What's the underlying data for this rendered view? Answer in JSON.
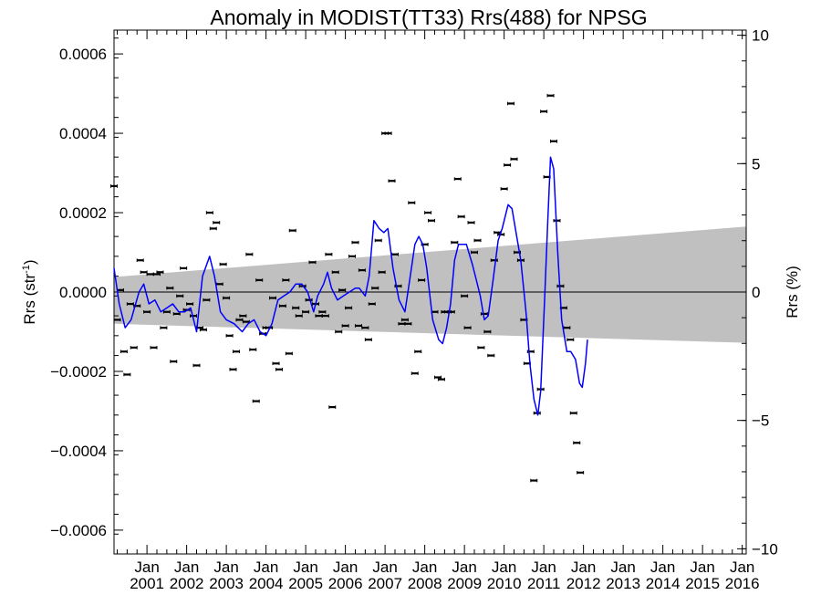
{
  "chart_data": {
    "type": "line",
    "title": "Anomaly in MODIST(TT33) Rrs(488) for NPSG",
    "ylabel": "Rrs (str",
    "ylabel_sup": "-1",
    "ylabel_close": ")",
    "y2label": "Rrs (%)",
    "xlim": [
      2000.17,
      2016.1
    ],
    "ylim": [
      -0.00066,
      0.00066
    ],
    "y2lim": [
      -10.2,
      10.2
    ],
    "yticks": [
      {
        "v": 0.0006,
        "label": "0.0006"
      },
      {
        "v": 0.0004,
        "label": "0.0004"
      },
      {
        "v": 0.0002,
        "label": "0.0002"
      },
      {
        "v": 0.0,
        "label": "0.0000"
      },
      {
        "v": -0.0002,
        "label": "−0.0002"
      },
      {
        "v": -0.0004,
        "label": "−0.0004"
      },
      {
        "v": -0.0006,
        "label": "−0.0006"
      }
    ],
    "y2ticks": [
      {
        "v": 10,
        "label": "10"
      },
      {
        "v": 5,
        "label": "5"
      },
      {
        "v": 0,
        "label": "0"
      },
      {
        "v": -5,
        "label": "−5"
      },
      {
        "v": -10,
        "label": "−10"
      }
    ],
    "xticks": [
      {
        "v": 2001,
        "line1": "Jan",
        "line2": "2001"
      },
      {
        "v": 2002,
        "line1": "Jan",
        "line2": "2002"
      },
      {
        "v": 2003,
        "line1": "Jan",
        "line2": "2003"
      },
      {
        "v": 2004,
        "line1": "Jan",
        "line2": "2004"
      },
      {
        "v": 2005,
        "line1": "Jan",
        "line2": "2005"
      },
      {
        "v": 2006,
        "line1": "Jan",
        "line2": "2006"
      },
      {
        "v": 2007,
        "line1": "Jan",
        "line2": "2007"
      },
      {
        "v": 2008,
        "line1": "Jan",
        "line2": "2008"
      },
      {
        "v": 2009,
        "line1": "Jan",
        "line2": "2009"
      },
      {
        "v": 2010,
        "line1": "Jan",
        "line2": "2010"
      },
      {
        "v": 2011,
        "line1": "Jan",
        "line2": "2011"
      },
      {
        "v": 2012,
        "line1": "Jan",
        "line2": "2012"
      },
      {
        "v": 2013,
        "line1": "Jan",
        "line2": "2013"
      },
      {
        "v": 2014,
        "line1": "Jan",
        "line2": "2014"
      },
      {
        "v": 2015,
        "line1": "Jan",
        "line2": "2015"
      },
      {
        "v": 2016,
        "line1": "Jan",
        "line2": "2016"
      }
    ],
    "band": {
      "color": "#c0c0c0",
      "upper": [
        [
          2000.17,
          3.8e-05
        ],
        [
          2016.1,
          0.000165
        ]
      ],
      "lower": [
        [
          2000.17,
          -8e-05
        ],
        [
          2016.1,
          -0.000128
        ]
      ]
    },
    "zero_line": 0,
    "series": [
      {
        "kind": "points",
        "color": "#000000",
        "values": [
          [
            2000.17,
            0.000267
          ],
          [
            2000.25,
            -7e-05
          ],
          [
            2000.33,
            5e-06
          ],
          [
            2000.42,
            -0.00015
          ],
          [
            2000.5,
            -0.000208
          ],
          [
            2000.58,
            -3e-05
          ],
          [
            2000.67,
            -0.00014
          ],
          [
            2000.75,
            -3.5e-05
          ],
          [
            2000.83,
            8e-05
          ],
          [
            2000.92,
            5e-05
          ],
          [
            2001.0,
            -5e-05
          ],
          [
            2001.08,
            4.5e-05
          ],
          [
            2001.17,
            -0.00014
          ],
          [
            2001.25,
            4.5e-05
          ],
          [
            2001.33,
            5e-05
          ],
          [
            2001.42,
            -9e-05
          ],
          [
            2001.5,
            -5e-05
          ],
          [
            2001.58,
            1e-05
          ],
          [
            2001.67,
            -0.000175
          ],
          [
            2001.75,
            -5.5e-05
          ],
          [
            2001.83,
            -1e-05
          ],
          [
            2001.92,
            6e-05
          ],
          [
            2002.0,
            -4.5e-05
          ],
          [
            2002.08,
            -3e-05
          ],
          [
            2002.17,
            -6e-05
          ],
          [
            2002.25,
            -0.000185
          ],
          [
            2002.33,
            -9e-05
          ],
          [
            2002.42,
            -9.5e-05
          ],
          [
            2002.5,
            -2e-05
          ],
          [
            2002.58,
            0.0002
          ],
          [
            2002.67,
            0.00016
          ],
          [
            2002.75,
            0.000175
          ],
          [
            2002.83,
            2e-05
          ],
          [
            2002.92,
            7e-05
          ],
          [
            2003.0,
            -1.5e-05
          ],
          [
            2003.08,
            -0.00011
          ],
          [
            2003.17,
            -0.000195
          ],
          [
            2003.25,
            -0.00015
          ],
          [
            2003.33,
            -7e-05
          ],
          [
            2003.42,
            -6e-05
          ],
          [
            2003.5,
            -7.5e-05
          ],
          [
            2003.58,
            9.5e-05
          ],
          [
            2003.67,
            -0.000145
          ],
          [
            2003.75,
            -0.000275
          ],
          [
            2003.83,
            3e-05
          ],
          [
            2003.92,
            -0.000105
          ],
          [
            2004.0,
            -9e-05
          ],
          [
            2004.08,
            -9e-05
          ],
          [
            2004.17,
            -1.5e-05
          ],
          [
            2004.25,
            -0.00018
          ],
          [
            2004.33,
            -0.000195
          ],
          [
            2004.42,
            -3.5e-05
          ],
          [
            2004.5,
            3e-05
          ],
          [
            2004.58,
            -0.000155
          ],
          [
            2004.67,
            0.000155
          ],
          [
            2004.75,
            -4e-05
          ],
          [
            2004.83,
            -6e-05
          ],
          [
            2004.92,
            1.5e-05
          ],
          [
            2005.0,
            -5e-05
          ],
          [
            2005.08,
            -2e-05
          ],
          [
            2005.17,
            7.5e-05
          ],
          [
            2005.25,
            -3e-05
          ],
          [
            2005.33,
            -6e-05
          ],
          [
            2005.42,
            -5e-05
          ],
          [
            2005.5,
            -6e-05
          ],
          [
            2005.58,
            9.5e-05
          ],
          [
            2005.67,
            -0.00029
          ],
          [
            2005.75,
            5e-05
          ],
          [
            2005.83,
            -0.0001
          ],
          [
            2005.92,
            5e-06
          ],
          [
            2006.0,
            -8.5e-05
          ],
          [
            2006.08,
            -4e-05
          ],
          [
            2006.17,
            9e-05
          ],
          [
            2006.25,
            0.000125
          ],
          [
            2006.33,
            -8.5e-05
          ],
          [
            2006.42,
            5.5e-05
          ],
          [
            2006.5,
            -9e-05
          ],
          [
            2006.58,
            -0.00012
          ],
          [
            2006.67,
            -3e-05
          ],
          [
            2006.75,
            1e-05
          ],
          [
            2006.83,
            0.00013
          ],
          [
            2006.92,
            5e-05
          ],
          [
            2007.0,
            0.0004
          ],
          [
            2007.08,
            0.0004
          ],
          [
            2007.17,
            0.00028
          ],
          [
            2007.25,
            9.5e-05
          ],
          [
            2007.33,
            1.5e-05
          ],
          [
            2007.42,
            -8e-05
          ],
          [
            2007.5,
            -7e-05
          ],
          [
            2007.58,
            -8e-05
          ],
          [
            2007.67,
            0.000225
          ],
          [
            2007.75,
            -0.000205
          ],
          [
            2007.83,
            -0.00015
          ],
          [
            2007.92,
            3e-05
          ],
          [
            2008.0,
            0.00012
          ],
          [
            2008.08,
            0.0002
          ],
          [
            2008.17,
            0.00018
          ],
          [
            2008.25,
            -5e-05
          ],
          [
            2008.33,
            -0.000215
          ],
          [
            2008.42,
            -0.00022
          ],
          [
            2008.5,
            -5e-05
          ],
          [
            2008.58,
            -5e-05
          ],
          [
            2008.67,
            -5e-05
          ],
          [
            2008.75,
            0.000125
          ],
          [
            2008.83,
            0.000285
          ],
          [
            2008.92,
            0.00019
          ],
          [
            2009.0,
            -1e-05
          ],
          [
            2009.08,
            -9e-05
          ],
          [
            2009.17,
            0.000175
          ],
          [
            2009.25,
            0.0001
          ],
          [
            2009.33,
            0.00013
          ],
          [
            2009.42,
            -0.00014
          ],
          [
            2009.5,
            -5.5e-05
          ],
          [
            2009.58,
            -0.0001
          ],
          [
            2009.67,
            -0.00016
          ],
          [
            2009.75,
            8e-05
          ],
          [
            2009.83,
            0.00015
          ],
          [
            2009.92,
            0.000145
          ],
          [
            2010.0,
            0.00026
          ],
          [
            2010.08,
            0.00032
          ],
          [
            2010.17,
            0.000475
          ],
          [
            2010.25,
            0.000335
          ],
          [
            2010.33,
            0.0001
          ],
          [
            2010.42,
            8e-05
          ],
          [
            2010.5,
            -7e-05
          ],
          [
            2010.58,
            -0.00018
          ],
          [
            2010.67,
            -0.00015
          ],
          [
            2010.75,
            -0.000475
          ],
          [
            2010.83,
            -0.000305
          ],
          [
            2010.92,
            -0.000245
          ],
          [
            2011.0,
            0.000455
          ],
          [
            2011.08,
            0.00029
          ],
          [
            2011.17,
            0.000495
          ],
          [
            2011.25,
            0.00038
          ],
          [
            2011.33,
            0.00018
          ],
          [
            2011.42,
            1.5e-05
          ],
          [
            2011.5,
            -4e-05
          ],
          [
            2011.58,
            -9e-05
          ],
          [
            2011.67,
            -0.00012
          ],
          [
            2011.75,
            -0.000305
          ],
          [
            2011.83,
            -0.00038
          ],
          [
            2011.92,
            -0.000455
          ]
        ]
      },
      {
        "kind": "line",
        "color": "#0000ff",
        "values": [
          [
            2000.17,
            6e-05
          ],
          [
            2000.3,
            -3e-05
          ],
          [
            2000.45,
            -9e-05
          ],
          [
            2000.6,
            -7e-05
          ],
          [
            2000.8,
            0.0
          ],
          [
            2000.92,
            2e-05
          ],
          [
            2001.05,
            -3e-05
          ],
          [
            2001.2,
            -2e-05
          ],
          [
            2001.35,
            -5e-05
          ],
          [
            2001.5,
            -4e-05
          ],
          [
            2001.65,
            -3e-05
          ],
          [
            2001.8,
            -5e-05
          ],
          [
            2001.95,
            -5e-05
          ],
          [
            2002.1,
            -4e-05
          ],
          [
            2002.25,
            -0.0001
          ],
          [
            2002.4,
            4e-05
          ],
          [
            2002.58,
            9e-05
          ],
          [
            2002.7,
            4e-05
          ],
          [
            2002.85,
            -5e-05
          ],
          [
            2003.0,
            -7e-05
          ],
          [
            2003.2,
            -8e-05
          ],
          [
            2003.4,
            -0.0001
          ],
          [
            2003.55,
            -8e-05
          ],
          [
            2003.7,
            -7e-05
          ],
          [
            2003.85,
            -0.0001
          ],
          [
            2004.0,
            -0.00011
          ],
          [
            2004.15,
            -8e-05
          ],
          [
            2004.3,
            -2e-05
          ],
          [
            2004.45,
            -1e-05
          ],
          [
            2004.6,
            0.0
          ],
          [
            2004.75,
            2e-05
          ],
          [
            2004.9,
            2e-05
          ],
          [
            2005.05,
            0.0
          ],
          [
            2005.2,
            -5e-05
          ],
          [
            2005.3,
            -1e-05
          ],
          [
            2005.45,
            2e-05
          ],
          [
            2005.55,
            5e-05
          ],
          [
            2005.65,
            1e-05
          ],
          [
            2005.8,
            -2e-05
          ],
          [
            2005.95,
            -1e-05
          ],
          [
            2006.1,
            0.0
          ],
          [
            2006.25,
            1e-05
          ],
          [
            2006.35,
            1e-05
          ],
          [
            2006.5,
            -1e-05
          ],
          [
            2006.6,
            4e-05
          ],
          [
            2006.72,
            0.00018
          ],
          [
            2006.85,
            0.00016
          ],
          [
            2006.97,
            0.00015
          ],
          [
            2007.07,
            0.00016
          ],
          [
            2007.2,
            6e-05
          ],
          [
            2007.35,
            -2e-05
          ],
          [
            2007.5,
            -5e-05
          ],
          [
            2007.62,
            3e-05
          ],
          [
            2007.75,
            0.00012
          ],
          [
            2007.85,
            0.00014
          ],
          [
            2007.95,
            0.00012
          ],
          [
            2008.05,
            6e-05
          ],
          [
            2008.2,
            -7e-05
          ],
          [
            2008.35,
            -0.00012
          ],
          [
            2008.45,
            -0.00013
          ],
          [
            2008.55,
            -9e-05
          ],
          [
            2008.65,
            -3e-05
          ],
          [
            2008.75,
            8e-05
          ],
          [
            2008.85,
            0.00012
          ],
          [
            2008.95,
            0.00012
          ],
          [
            2009.05,
            0.00012
          ],
          [
            2009.2,
            7e-05
          ],
          [
            2009.3,
            3e-05
          ],
          [
            2009.4,
            -1e-05
          ],
          [
            2009.5,
            -7e-05
          ],
          [
            2009.6,
            -6e-05
          ],
          [
            2009.72,
            3e-05
          ],
          [
            2009.85,
            0.00013
          ],
          [
            2009.95,
            0.00016
          ],
          [
            2010.1,
            0.00022
          ],
          [
            2010.2,
            0.00021
          ],
          [
            2010.3,
            0.00015
          ],
          [
            2010.42,
            8e-05
          ],
          [
            2010.55,
            -5e-05
          ],
          [
            2010.65,
            -0.00018
          ],
          [
            2010.75,
            -0.00027
          ],
          [
            2010.85,
            -0.00031
          ],
          [
            2010.92,
            -0.00025
          ],
          [
            2011.02,
            -2e-05
          ],
          [
            2011.1,
            0.00018
          ],
          [
            2011.17,
            0.00034
          ],
          [
            2011.25,
            0.00031
          ],
          [
            2011.35,
            0.0001
          ],
          [
            2011.45,
            -7e-05
          ],
          [
            2011.58,
            -0.00015
          ],
          [
            2011.68,
            -0.00015
          ],
          [
            2011.8,
            -0.00017
          ],
          [
            2011.9,
            -0.00023
          ],
          [
            2011.97,
            -0.00024
          ],
          [
            2012.05,
            -0.00018
          ],
          [
            2012.1,
            -0.00012
          ]
        ]
      }
    ]
  }
}
